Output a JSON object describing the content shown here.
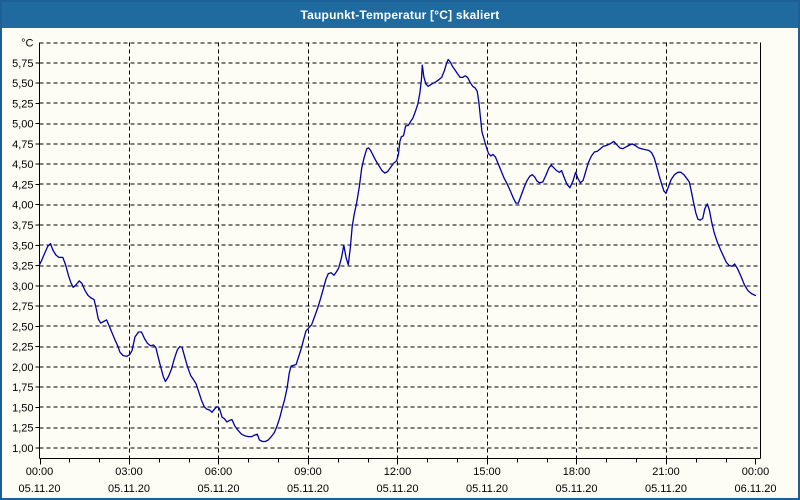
{
  "window": {
    "title": "Taupunkt-Temperatur [°C] skaliert"
  },
  "colors": {
    "titlebar_bg": "#1f6a9f",
    "titlebar_text": "#ffffff",
    "window_border": "#1d5f97",
    "content_bg": "#fdfdf5",
    "grid": "#000000",
    "axis": "#000000",
    "text": "#000000",
    "line": "#0000a8"
  },
  "chart_data": {
    "type": "line",
    "title": "Taupunkt-Temperatur [°C] skaliert",
    "unit_label": "°C",
    "grid": "dashed",
    "legend_position": "none",
    "y_axis": {
      "top_value": 6.0,
      "label_max": 5.75,
      "label_min": 1.0,
      "step": 0.25,
      "labels_top_to_bottom": [
        "5,75",
        "5,50",
        "5,25",
        "5,00",
        "4,75",
        "4,50",
        "4,25",
        "4,00",
        "3,75",
        "3,50",
        "3,25",
        "3,00",
        "2,75",
        "2,50",
        "2,25",
        "2,00",
        "1,75",
        "1,50",
        "1,25",
        "1,00"
      ]
    },
    "x_axis": {
      "hours_span": 24,
      "minor_tick_every_hours": 1,
      "major_tick_every_hours": 3,
      "gridline_hours": [
        3,
        6,
        9,
        12,
        15,
        18,
        21
      ],
      "ticks": [
        {
          "hour": 0,
          "time": "00:00",
          "date": "05.11.20"
        },
        {
          "hour": 3,
          "time": "03:00",
          "date": "05.11.20"
        },
        {
          "hour": 6,
          "time": "06:00",
          "date": "05.11.20"
        },
        {
          "hour": 9,
          "time": "09:00",
          "date": "05.11.20"
        },
        {
          "hour": 12,
          "time": "12:00",
          "date": "05.11.20"
        },
        {
          "hour": 15,
          "time": "15:00",
          "date": "05.11.20"
        },
        {
          "hour": 18,
          "time": "18:00",
          "date": "05.11.20"
        },
        {
          "hour": 21,
          "time": "21:00",
          "date": "05.11.20"
        },
        {
          "hour": 24,
          "time": "00:00",
          "date": "06.11.20"
        }
      ]
    },
    "series": [
      {
        "name": "Taupunkt-Temperatur",
        "color": "#0000a8",
        "points": [
          [
            0.0,
            3.26
          ],
          [
            0.08,
            3.32
          ],
          [
            0.17,
            3.4
          ],
          [
            0.28,
            3.49
          ],
          [
            0.37,
            3.52
          ],
          [
            0.45,
            3.44
          ],
          [
            0.55,
            3.38
          ],
          [
            0.65,
            3.35
          ],
          [
            0.78,
            3.35
          ],
          [
            0.88,
            3.25
          ],
          [
            0.97,
            3.13
          ],
          [
            1.05,
            3.04
          ],
          [
            1.13,
            2.98
          ],
          [
            1.22,
            3.01
          ],
          [
            1.33,
            3.06
          ],
          [
            1.42,
            3.03
          ],
          [
            1.53,
            2.94
          ],
          [
            1.63,
            2.88
          ],
          [
            1.73,
            2.85
          ],
          [
            1.83,
            2.83
          ],
          [
            1.9,
            2.72
          ],
          [
            1.97,
            2.59
          ],
          [
            2.05,
            2.54
          ],
          [
            2.15,
            2.56
          ],
          [
            2.25,
            2.58
          ],
          [
            2.33,
            2.51
          ],
          [
            2.42,
            2.43
          ],
          [
            2.52,
            2.34
          ],
          [
            2.62,
            2.26
          ],
          [
            2.7,
            2.18
          ],
          [
            2.8,
            2.14
          ],
          [
            2.92,
            2.13
          ],
          [
            3.02,
            2.15
          ],
          [
            3.1,
            2.2
          ],
          [
            3.2,
            2.37
          ],
          [
            3.32,
            2.43
          ],
          [
            3.42,
            2.43
          ],
          [
            3.52,
            2.35
          ],
          [
            3.62,
            2.29
          ],
          [
            3.72,
            2.26
          ],
          [
            3.82,
            2.27
          ],
          [
            3.9,
            2.24
          ],
          [
            3.98,
            2.12
          ],
          [
            4.07,
            1.99
          ],
          [
            4.15,
            1.88
          ],
          [
            4.22,
            1.82
          ],
          [
            4.32,
            1.88
          ],
          [
            4.42,
            1.97
          ],
          [
            4.52,
            2.1
          ],
          [
            4.62,
            2.21
          ],
          [
            4.7,
            2.25
          ],
          [
            4.78,
            2.24
          ],
          [
            4.87,
            2.12
          ],
          [
            4.97,
            1.99
          ],
          [
            5.07,
            1.89
          ],
          [
            5.17,
            1.84
          ],
          [
            5.25,
            1.79
          ],
          [
            5.33,
            1.7
          ],
          [
            5.43,
            1.59
          ],
          [
            5.52,
            1.51
          ],
          [
            5.6,
            1.48
          ],
          [
            5.7,
            1.47
          ],
          [
            5.78,
            1.44
          ],
          [
            5.87,
            1.48
          ],
          [
            5.95,
            1.51
          ],
          [
            6.03,
            1.49
          ],
          [
            6.12,
            1.38
          ],
          [
            6.2,
            1.36
          ],
          [
            6.28,
            1.32
          ],
          [
            6.37,
            1.34
          ],
          [
            6.45,
            1.35
          ],
          [
            6.55,
            1.27
          ],
          [
            6.65,
            1.22
          ],
          [
            6.77,
            1.17
          ],
          [
            6.88,
            1.15
          ],
          [
            7.0,
            1.14
          ],
          [
            7.12,
            1.14
          ],
          [
            7.22,
            1.16
          ],
          [
            7.3,
            1.17
          ],
          [
            7.37,
            1.1
          ],
          [
            7.47,
            1.08
          ],
          [
            7.57,
            1.08
          ],
          [
            7.67,
            1.1
          ],
          [
            7.77,
            1.14
          ],
          [
            7.87,
            1.19
          ],
          [
            7.95,
            1.26
          ],
          [
            8.05,
            1.37
          ],
          [
            8.13,
            1.48
          ],
          [
            8.22,
            1.6
          ],
          [
            8.3,
            1.74
          ],
          [
            8.37,
            1.92
          ],
          [
            8.43,
            2.01
          ],
          [
            8.52,
            2.02
          ],
          [
            8.6,
            2.03
          ],
          [
            8.68,
            2.12
          ],
          [
            8.77,
            2.22
          ],
          [
            8.85,
            2.33
          ],
          [
            8.93,
            2.44
          ],
          [
            9.02,
            2.48
          ],
          [
            9.12,
            2.52
          ],
          [
            9.22,
            2.62
          ],
          [
            9.32,
            2.72
          ],
          [
            9.42,
            2.84
          ],
          [
            9.52,
            2.97
          ],
          [
            9.6,
            3.08
          ],
          [
            9.68,
            3.15
          ],
          [
            9.78,
            3.16
          ],
          [
            9.87,
            3.13
          ],
          [
            9.95,
            3.17
          ],
          [
            10.03,
            3.22
          ],
          [
            10.12,
            3.34
          ],
          [
            10.2,
            3.5
          ],
          [
            10.28,
            3.34
          ],
          [
            10.35,
            3.26
          ],
          [
            10.42,
            3.48
          ],
          [
            10.48,
            3.73
          ],
          [
            10.55,
            3.88
          ],
          [
            10.63,
            4.02
          ],
          [
            10.72,
            4.22
          ],
          [
            10.8,
            4.45
          ],
          [
            10.88,
            4.58
          ],
          [
            10.97,
            4.69
          ],
          [
            11.03,
            4.7
          ],
          [
            11.1,
            4.67
          ],
          [
            11.18,
            4.61
          ],
          [
            11.28,
            4.54
          ],
          [
            11.38,
            4.48
          ],
          [
            11.48,
            4.42
          ],
          [
            11.58,
            4.39
          ],
          [
            11.67,
            4.41
          ],
          [
            11.77,
            4.46
          ],
          [
            11.87,
            4.51
          ],
          [
            11.97,
            4.54
          ],
          [
            12.03,
            4.62
          ],
          [
            12.08,
            4.78
          ],
          [
            12.13,
            4.84
          ],
          [
            12.2,
            4.85
          ],
          [
            12.27,
            4.97
          ],
          [
            12.37,
            4.98
          ],
          [
            12.43,
            5.02
          ],
          [
            12.52,
            5.07
          ],
          [
            12.6,
            5.15
          ],
          [
            12.68,
            5.24
          ],
          [
            12.75,
            5.38
          ],
          [
            12.8,
            5.54
          ],
          [
            12.83,
            5.72
          ],
          [
            12.88,
            5.58
          ],
          [
            12.95,
            5.49
          ],
          [
            13.03,
            5.46
          ],
          [
            13.15,
            5.49
          ],
          [
            13.27,
            5.51
          ],
          [
            13.38,
            5.54
          ],
          [
            13.48,
            5.57
          ],
          [
            13.57,
            5.65
          ],
          [
            13.65,
            5.75
          ],
          [
            13.7,
            5.79
          ],
          [
            13.77,
            5.76
          ],
          [
            13.85,
            5.7
          ],
          [
            13.93,
            5.66
          ],
          [
            14.02,
            5.61
          ],
          [
            14.1,
            5.57
          ],
          [
            14.18,
            5.57
          ],
          [
            14.27,
            5.59
          ],
          [
            14.35,
            5.57
          ],
          [
            14.43,
            5.51
          ],
          [
            14.52,
            5.46
          ],
          [
            14.6,
            5.44
          ],
          [
            14.67,
            5.4
          ],
          [
            14.73,
            5.26
          ],
          [
            14.78,
            5.08
          ],
          [
            14.83,
            4.9
          ],
          [
            14.9,
            4.81
          ],
          [
            14.97,
            4.72
          ],
          [
            15.05,
            4.63
          ],
          [
            15.13,
            4.6
          ],
          [
            15.2,
            4.62
          ],
          [
            15.28,
            4.59
          ],
          [
            15.37,
            4.51
          ],
          [
            15.47,
            4.42
          ],
          [
            15.57,
            4.33
          ],
          [
            15.67,
            4.26
          ],
          [
            15.77,
            4.18
          ],
          [
            15.87,
            4.09
          ],
          [
            15.97,
            4.02
          ],
          [
            16.05,
            4.02
          ],
          [
            16.13,
            4.1
          ],
          [
            16.23,
            4.2
          ],
          [
            16.33,
            4.29
          ],
          [
            16.43,
            4.35
          ],
          [
            16.52,
            4.37
          ],
          [
            16.6,
            4.34
          ],
          [
            16.68,
            4.29
          ],
          [
            16.77,
            4.27
          ],
          [
            16.87,
            4.28
          ],
          [
            16.97,
            4.36
          ],
          [
            17.07,
            4.45
          ],
          [
            17.15,
            4.49
          ],
          [
            17.23,
            4.46
          ],
          [
            17.33,
            4.42
          ],
          [
            17.43,
            4.4
          ],
          [
            17.5,
            4.42
          ],
          [
            17.58,
            4.34
          ],
          [
            17.68,
            4.25
          ],
          [
            17.78,
            4.21
          ],
          [
            17.88,
            4.29
          ],
          [
            17.97,
            4.4
          ],
          [
            18.05,
            4.32
          ],
          [
            18.13,
            4.27
          ],
          [
            18.22,
            4.3
          ],
          [
            18.32,
            4.42
          ],
          [
            18.4,
            4.52
          ],
          [
            18.5,
            4.6
          ],
          [
            18.6,
            4.65
          ],
          [
            18.7,
            4.66
          ],
          [
            18.8,
            4.69
          ],
          [
            18.9,
            4.72
          ],
          [
            19.0,
            4.73
          ],
          [
            19.12,
            4.75
          ],
          [
            19.25,
            4.78
          ],
          [
            19.35,
            4.74
          ],
          [
            19.45,
            4.7
          ],
          [
            19.55,
            4.69
          ],
          [
            19.65,
            4.71
          ],
          [
            19.75,
            4.73
          ],
          [
            19.87,
            4.75
          ],
          [
            19.97,
            4.73
          ],
          [
            20.08,
            4.7
          ],
          [
            20.18,
            4.69
          ],
          [
            20.3,
            4.68
          ],
          [
            20.42,
            4.67
          ],
          [
            20.52,
            4.64
          ],
          [
            20.6,
            4.58
          ],
          [
            20.68,
            4.48
          ],
          [
            20.77,
            4.36
          ],
          [
            20.85,
            4.26
          ],
          [
            20.93,
            4.17
          ],
          [
            21.0,
            4.14
          ],
          [
            21.08,
            4.22
          ],
          [
            21.17,
            4.31
          ],
          [
            21.28,
            4.37
          ],
          [
            21.4,
            4.4
          ],
          [
            21.5,
            4.4
          ],
          [
            21.6,
            4.37
          ],
          [
            21.7,
            4.32
          ],
          [
            21.78,
            4.28
          ],
          [
            21.85,
            4.16
          ],
          [
            21.93,
            4.02
          ],
          [
            22.0,
            3.9
          ],
          [
            22.07,
            3.82
          ],
          [
            22.15,
            3.81
          ],
          [
            22.23,
            3.83
          ],
          [
            22.3,
            3.95
          ],
          [
            22.38,
            4.01
          ],
          [
            22.45,
            3.94
          ],
          [
            22.53,
            3.79
          ],
          [
            22.62,
            3.65
          ],
          [
            22.72,
            3.54
          ],
          [
            22.82,
            3.45
          ],
          [
            22.92,
            3.37
          ],
          [
            23.02,
            3.29
          ],
          [
            23.12,
            3.25
          ],
          [
            23.22,
            3.24
          ],
          [
            23.3,
            3.27
          ],
          [
            23.4,
            3.21
          ],
          [
            23.52,
            3.11
          ],
          [
            23.63,
            3.01
          ],
          [
            23.75,
            2.94
          ],
          [
            23.88,
            2.9
          ],
          [
            24.0,
            2.88
          ]
        ]
      }
    ]
  }
}
